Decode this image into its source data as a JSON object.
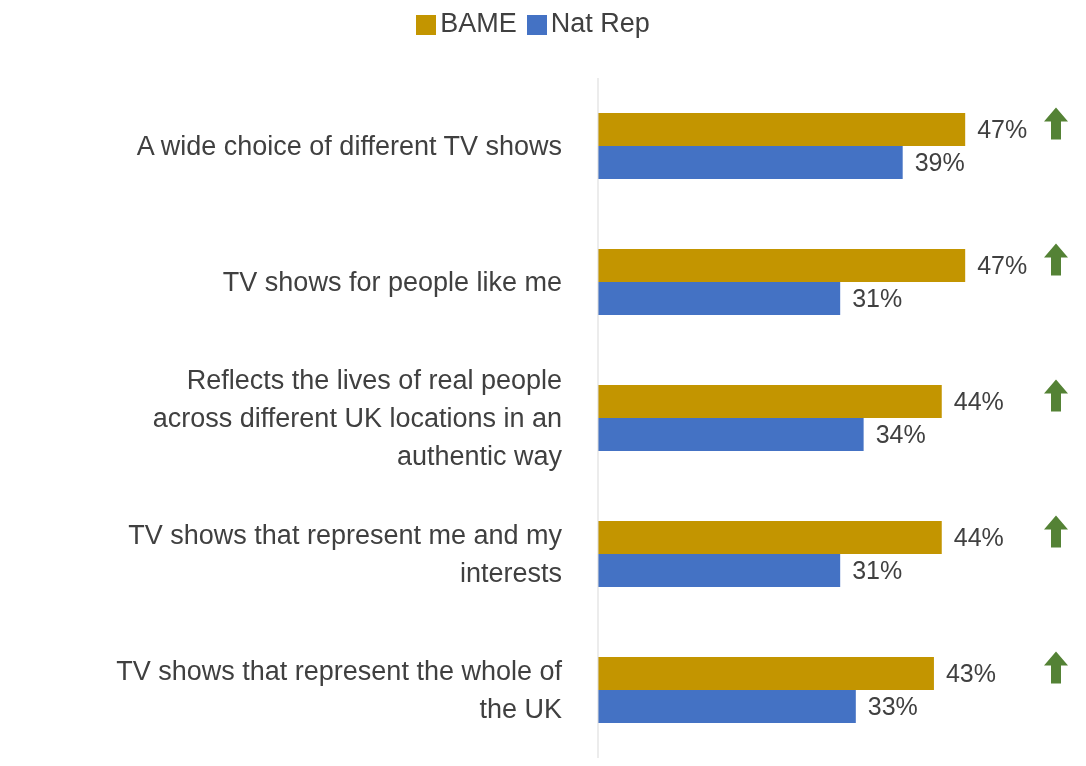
{
  "chart_data": {
    "type": "bar",
    "orientation": "horizontal",
    "categories": [
      "A wide choice of different TV shows",
      "TV shows for people like me",
      "Reflects the lives of real people across different UK locations in an authentic way",
      "TV shows that represent me and my interests",
      "TV shows that represent the whole of the UK"
    ],
    "series": [
      {
        "name": "BAME",
        "color": "#c39500",
        "values": [
          47,
          47,
          44,
          44,
          43
        ],
        "value_labels": [
          "47%",
          "47%",
          "44%",
          "44%",
          "43%"
        ]
      },
      {
        "name": "Nat Rep",
        "color": "#4472c4",
        "values": [
          39,
          31,
          34,
          31,
          33
        ],
        "value_labels": [
          "39%",
          "31%",
          "34%",
          "31%",
          "33%"
        ]
      }
    ],
    "legend": "top"
  }
}
